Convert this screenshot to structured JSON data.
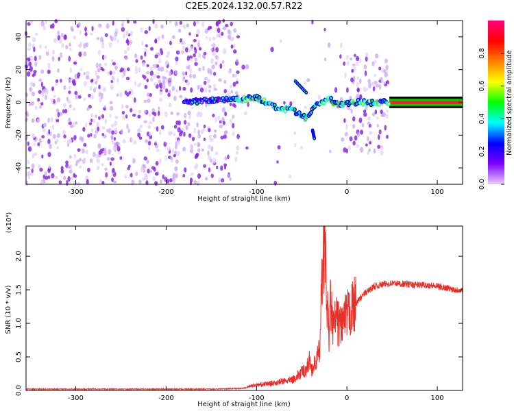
{
  "title": "C2E5.2024.132.00.57.R22",
  "chart_data": [
    {
      "type": "heatmap",
      "title": "C2E5.2024.132.00.57.R22",
      "xlabel": "Height of straight line (km)",
      "ylabel": "Frequency (Hz)",
      "xlim": [
        -355,
        128
      ],
      "ylim": [
        -50,
        50
      ],
      "x_ticks": [
        -300,
        -200,
        -100,
        0,
        100
      ],
      "y_ticks": [
        -40,
        -20,
        0,
        20,
        40
      ],
      "colorbar": {
        "label": "Normalized spectral amplitude",
        "range": [
          0.0,
          1.0
        ],
        "ticks": [
          "0.0",
          "0.2",
          "0.4",
          "0.6",
          "0.8"
        ],
        "colormap": [
          "#e6ccff",
          "#7f00ff",
          "#0000ff",
          "#00ffff",
          "#00ff00",
          "#ffff00",
          "#ff7f00",
          "#ff0000",
          "#ff0080"
        ]
      },
      "regions": [
        {
          "name": "scatter",
          "x": [
            -355,
            -120
          ],
          "y": [
            -50,
            50
          ],
          "amplitude": 0.08
        },
        {
          "name": "sparse",
          "x": [
            -120,
            -5
          ],
          "y": [
            -50,
            50
          ],
          "amplitude": 0.04
        },
        {
          "name": "scatter",
          "x": [
            -5,
            47
          ],
          "y": [
            -32,
            32
          ],
          "amplitude": 0.06
        },
        {
          "name": "line",
          "x": [
            47,
            128
          ],
          "y": [
            -1.5,
            1.5
          ],
          "amplitude": 0.95
        }
      ],
      "trace": [
        {
          "x": -180,
          "y": 0
        },
        {
          "x": -160,
          "y": 1
        },
        {
          "x": -140,
          "y": 2
        },
        {
          "x": -120,
          "y": 2
        },
        {
          "x": -100,
          "y": 3
        },
        {
          "x": -80,
          "y": -3
        },
        {
          "x": -60,
          "y": -5
        },
        {
          "x": -45,
          "y": -10
        },
        {
          "x": -35,
          "y": -2
        },
        {
          "x": -20,
          "y": 2
        },
        {
          "x": -10,
          "y": -1
        },
        {
          "x": 0,
          "y": 0
        },
        {
          "x": 47,
          "y": 0
        }
      ],
      "features": [
        {
          "x": [
            -57,
            -45
          ],
          "y": [
            13,
            6
          ]
        },
        {
          "x": [
            -38,
            -36
          ],
          "y": [
            -17,
            -22
          ]
        }
      ]
    },
    {
      "type": "line",
      "xlabel": "Height of straight line (km)",
      "ylabel": "SNR (10 * v/v)",
      "y_multiplier": "(x10⁴)",
      "xlim": [
        -355,
        128
      ],
      "ylim": [
        0,
        2.45
      ],
      "x_ticks": [
        -300,
        -200,
        -100,
        0,
        100
      ],
      "y_ticks": [
        "0.0",
        "0.5",
        "1.0",
        "1.5",
        "2.0"
      ],
      "color": "#e8302a",
      "series": [
        {
          "x": [
            -355,
            -300,
            -250,
            -200,
            -150,
            -120,
            -100,
            -80,
            -60,
            -45,
            -35,
            -30,
            -27,
            -25,
            -22,
            -20,
            -18,
            -15,
            -12,
            -10,
            -5,
            0,
            5,
            10,
            20,
            30,
            40,
            50,
            60,
            70,
            80,
            90,
            100,
            110,
            120,
            128
          ],
          "y": [
            0.02,
            0.02,
            0.02,
            0.02,
            0.02,
            0.03,
            0.05,
            0.07,
            0.1,
            0.2,
            0.4,
            0.6,
            1.9,
            2.4,
            1.3,
            0.8,
            1.3,
            0.9,
            1.1,
            1.0,
            1.0,
            1.1,
            1.2,
            1.3,
            1.45,
            1.55,
            1.58,
            1.6,
            1.59,
            1.58,
            1.57,
            1.57,
            1.55,
            1.53,
            1.5,
            1.5
          ]
        }
      ]
    }
  ]
}
